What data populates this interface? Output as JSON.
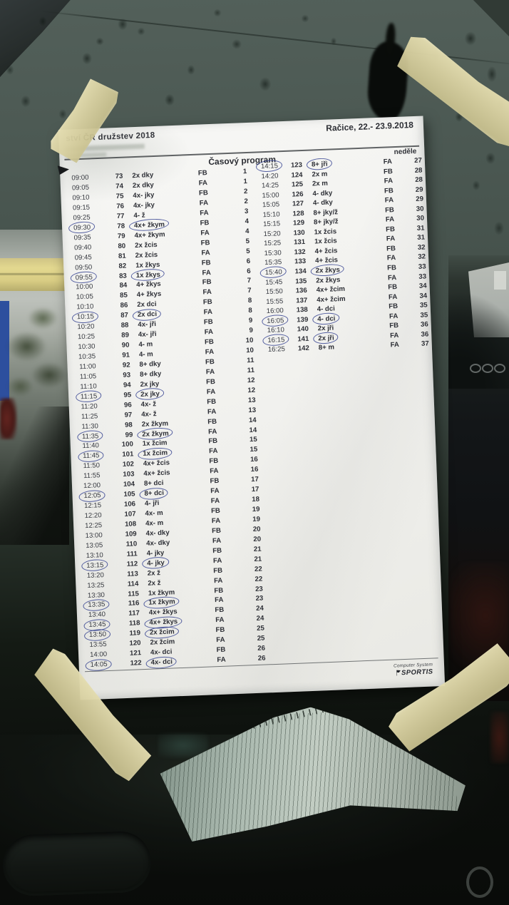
{
  "colors": {
    "pen_ink": "#3243a0",
    "tape": "#d9d2a6",
    "glass": "#4b5751",
    "paper": "#f3f3f0",
    "print_ink": "#2c2e35"
  },
  "paper": {
    "header": {
      "event_title": "ství ČR družstev 2018",
      "location_date": "Račice,  22.- 23.9.2018",
      "program_title": "Časový program",
      "day_label": "neděle"
    },
    "footer": {
      "credit_line1": "Computer System",
      "credit_line2": "SPORTIS"
    },
    "schedule": {
      "left_column": [
        {
          "t": "09:00",
          "n": "73",
          "e": "2x dky",
          "f": "FB",
          "h": "1"
        },
        {
          "t": "09:05",
          "n": "74",
          "e": "2x dky",
          "f": "FA",
          "h": "1"
        },
        {
          "t": "09:10",
          "n": "75",
          "e": "4x- jky",
          "f": "FB",
          "h": "2"
        },
        {
          "t": "09:15",
          "n": "76",
          "e": "4x- jky",
          "f": "FA",
          "h": "2"
        },
        {
          "t": "09:25",
          "n": "77",
          "e": "4- ž",
          "f": "FA",
          "h": "3"
        },
        {
          "t": "09:30",
          "n": "78",
          "e": "4x+ žkym",
          "f": "FB",
          "h": "4",
          "c": true
        },
        {
          "t": "09:35",
          "n": "79",
          "e": "4x+ žkym",
          "f": "FA",
          "h": "4"
        },
        {
          "t": "09:40",
          "n": "80",
          "e": "2x žcis",
          "f": "FB",
          "h": "5"
        },
        {
          "t": "09:45",
          "n": "81",
          "e": "2x žcis",
          "f": "FA",
          "h": "5"
        },
        {
          "t": "09:50",
          "n": "82",
          "e": "1x žkys",
          "f": "FB",
          "h": "6"
        },
        {
          "t": "09:55",
          "n": "83",
          "e": "1x žkys",
          "f": "FA",
          "h": "6",
          "c": true
        },
        {
          "t": "10:00",
          "n": "84",
          "e": "4+ žkys",
          "f": "FB",
          "h": "7"
        },
        {
          "t": "10:05",
          "n": "85",
          "e": "4+ žkys",
          "f": "FA",
          "h": "7"
        },
        {
          "t": "10:10",
          "n": "86",
          "e": "2x dci",
          "f": "FB",
          "h": "8"
        },
        {
          "t": "10:15",
          "n": "87",
          "e": "2x dci",
          "f": "FA",
          "h": "8",
          "c": true
        },
        {
          "t": "10:20",
          "n": "88",
          "e": "4x- jři",
          "f": "FB",
          "h": "9"
        },
        {
          "t": "10:25",
          "n": "89",
          "e": "4x- jři",
          "f": "FA",
          "h": "9"
        },
        {
          "t": "10:30",
          "n": "90",
          "e": "4- m",
          "f": "FB",
          "h": "10"
        },
        {
          "t": "10:35",
          "n": "91",
          "e": "4- m",
          "f": "FA",
          "h": "10"
        },
        {
          "t": "11:00",
          "n": "92",
          "e": "8+ dky",
          "f": "FB",
          "h": "11"
        },
        {
          "t": "11:05",
          "n": "93",
          "e": "8+ dky",
          "f": "FA",
          "h": "11"
        },
        {
          "t": "11:10",
          "n": "94",
          "e": "2x jky",
          "f": "FB",
          "h": "12"
        },
        {
          "t": "11:15",
          "n": "95",
          "e": "2x jky",
          "f": "FA",
          "h": "12",
          "c": true
        },
        {
          "t": "11:20",
          "n": "96",
          "e": "4x- ž",
          "f": "FB",
          "h": "13"
        },
        {
          "t": "11:25",
          "n": "97",
          "e": "4x- ž",
          "f": "FA",
          "h": "13"
        },
        {
          "t": "11:30",
          "n": "98",
          "e": "2x žkym",
          "f": "FB",
          "h": "14"
        },
        {
          "t": "11:35",
          "n": "99",
          "e": "2x žkym",
          "f": "FA",
          "h": "14",
          "c": true
        },
        {
          "t": "11:40",
          "n": "100",
          "e": "1x žcim",
          "f": "FB",
          "h": "15"
        },
        {
          "t": "11:45",
          "n": "101",
          "e": "1x žcim",
          "f": "FA",
          "h": "15",
          "c": true
        },
        {
          "t": "11:50",
          "n": "102",
          "e": "4x+ žcis",
          "f": "FB",
          "h": "16"
        },
        {
          "t": "11:55",
          "n": "103",
          "e": "4x+ žcis",
          "f": "FA",
          "h": "16"
        },
        {
          "t": "12:00",
          "n": "104",
          "e": "8+ dci",
          "f": "FB",
          "h": "17"
        },
        {
          "t": "12:05",
          "n": "105",
          "e": "8+ dci",
          "f": "FA",
          "h": "17",
          "c": true
        },
        {
          "t": "12:15",
          "n": "106",
          "e": "4- jři",
          "f": "FA",
          "h": "18"
        },
        {
          "t": "12:20",
          "n": "107",
          "e": "4x- m",
          "f": "FB",
          "h": "19"
        },
        {
          "t": "12:25",
          "n": "108",
          "e": "4x- m",
          "f": "FA",
          "h": "19"
        },
        {
          "t": "13:00",
          "n": "109",
          "e": "4x- dky",
          "f": "FB",
          "h": "20"
        },
        {
          "t": "13:05",
          "n": "110",
          "e": "4x- dky",
          "f": "FA",
          "h": "20"
        },
        {
          "t": "13:10",
          "n": "111",
          "e": "4- jky",
          "f": "FB",
          "h": "21"
        },
        {
          "t": "13:15",
          "n": "112",
          "e": "4- jky",
          "f": "FA",
          "h": "21",
          "c": true
        },
        {
          "t": "13:20",
          "n": "113",
          "e": "2x ž",
          "f": "FB",
          "h": "22"
        },
        {
          "t": "13:25",
          "n": "114",
          "e": "2x ž",
          "f": "FA",
          "h": "22"
        },
        {
          "t": "13:30",
          "n": "115",
          "e": "1x žkym",
          "f": "FB",
          "h": "23"
        },
        {
          "t": "13:35",
          "n": "116",
          "e": "1x žkym",
          "f": "FA",
          "h": "23",
          "c": true
        },
        {
          "t": "13:40",
          "n": "117",
          "e": "4x+ žkys",
          "f": "FB",
          "h": "24"
        },
        {
          "t": "13:45",
          "n": "118",
          "e": "4x+ žkys",
          "f": "FA",
          "h": "24",
          "c": true
        },
        {
          "t": "13:50",
          "n": "119",
          "e": "2x žcim",
          "f": "FB",
          "h": "25",
          "c": true
        },
        {
          "t": "13:55",
          "n": "120",
          "e": "2x žcim",
          "f": "FA",
          "h": "25"
        },
        {
          "t": "14:00",
          "n": "121",
          "e": "4x- dci",
          "f": "FB",
          "h": "26"
        },
        {
          "t": "14:05",
          "n": "122",
          "e": "4x- dci",
          "f": "FA",
          "h": "26",
          "c": true
        }
      ],
      "right_column": [
        {
          "t": "14:15",
          "n": "123",
          "e": "8+ jři",
          "f": "FA",
          "h": "27",
          "c": true
        },
        {
          "t": "14:20",
          "n": "124",
          "e": "2x m",
          "f": "FB",
          "h": "28"
        },
        {
          "t": "14:25",
          "n": "125",
          "e": "2x m",
          "f": "FA",
          "h": "28"
        },
        {
          "t": "15:00",
          "n": "126",
          "e": "4- dky",
          "f": "FB",
          "h": "29"
        },
        {
          "t": "15:05",
          "n": "127",
          "e": "4- dky",
          "f": "FA",
          "h": "29"
        },
        {
          "t": "15:10",
          "n": "128",
          "e": "8+ jky/ž",
          "f": "FB",
          "h": "30"
        },
        {
          "t": "15:15",
          "n": "129",
          "e": "8+ jky/ž",
          "f": "FA",
          "h": "30"
        },
        {
          "t": "15:20",
          "n": "130",
          "e": "1x žcis",
          "f": "FB",
          "h": "31"
        },
        {
          "t": "15:25",
          "n": "131",
          "e": "1x žcis",
          "f": "FA",
          "h": "31"
        },
        {
          "t": "15:30",
          "n": "132",
          "e": "4+ žcis",
          "f": "FB",
          "h": "32"
        },
        {
          "t": "15:35",
          "n": "133",
          "e": "4+ žcis",
          "f": "FA",
          "h": "32"
        },
        {
          "t": "15:40",
          "n": "134",
          "e": "2x žkys",
          "f": "FB",
          "h": "33",
          "c": true
        },
        {
          "t": "15:45",
          "n": "135",
          "e": "2x žkys",
          "f": "FA",
          "h": "33"
        },
        {
          "t": "15:50",
          "n": "136",
          "e": "4x+ žcim",
          "f": "FB",
          "h": "34"
        },
        {
          "t": "15:55",
          "n": "137",
          "e": "4x+ žcim",
          "f": "FA",
          "h": "34"
        },
        {
          "t": "16:00",
          "n": "138",
          "e": "4- dci",
          "f": "FB",
          "h": "35"
        },
        {
          "t": "16:05",
          "n": "139",
          "e": "4- dci",
          "f": "FA",
          "h": "35",
          "c": true
        },
        {
          "t": "16:10",
          "n": "140",
          "e": "2x jři",
          "f": "FB",
          "h": "36"
        },
        {
          "t": "16:15",
          "n": "141",
          "e": "2x jři",
          "f": "FA",
          "h": "36",
          "c": true
        },
        {
          "t": "16:25",
          "n": "142",
          "e": "8+ m",
          "f": "FA",
          "h": "37"
        }
      ]
    }
  }
}
